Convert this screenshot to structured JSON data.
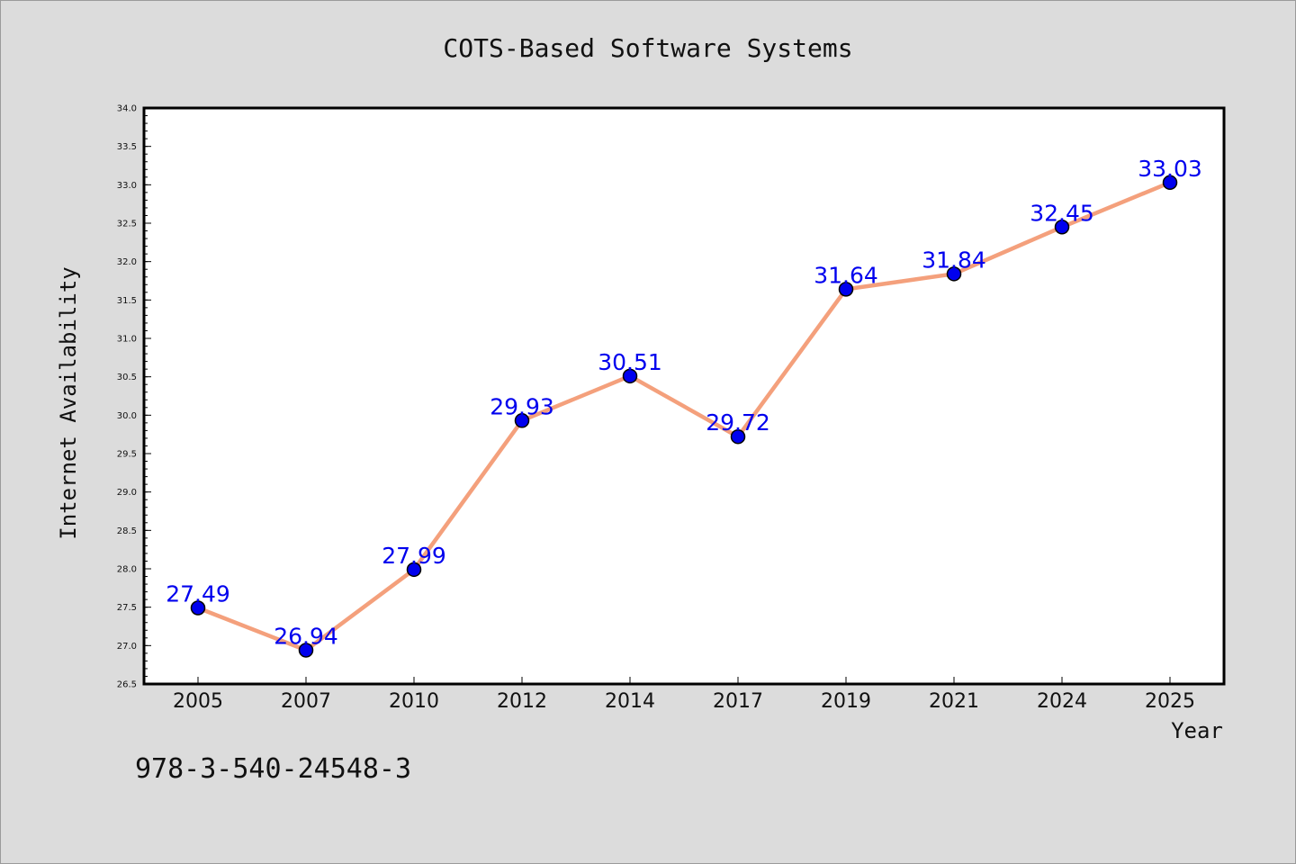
{
  "chart_data": {
    "type": "line",
    "title": "COTS-Based Software Systems",
    "xlabel": "Year",
    "ylabel": "Internet Availability",
    "categories": [
      "2005",
      "2007",
      "2010",
      "2012",
      "2014",
      "2017",
      "2019",
      "2021",
      "2024",
      "2025"
    ],
    "series": [
      {
        "values": [
          27.49,
          26.94,
          27.99,
          29.93,
          30.51,
          29.72,
          31.64,
          31.84,
          32.45,
          33.03
        ],
        "data_labels": [
          "27.49",
          "26.94",
          "27.99",
          "29.93",
          "30.51",
          "29.72",
          "31.64",
          "31.84",
          "32.45",
          "33.03"
        ]
      }
    ],
    "ylim": [
      26.5,
      34.0
    ],
    "yticks": [
      "26.5",
      "27.0",
      "27.5",
      "28.0",
      "28.5",
      "29.0",
      "29.5",
      "30.0",
      "30.5",
      "31.0",
      "31.5",
      "32.0",
      "32.5",
      "33.0",
      "33.5",
      "34.0"
    ],
    "grid": false,
    "legend": "none",
    "colors": {
      "line": "#f4a07c",
      "marker": "#0000ee",
      "marker_edge": "#000000",
      "data_label": "#0000ee",
      "background": "#dcdcdc",
      "plot_background": "#ffffff"
    }
  },
  "footnote": "978-3-540-24548-3"
}
